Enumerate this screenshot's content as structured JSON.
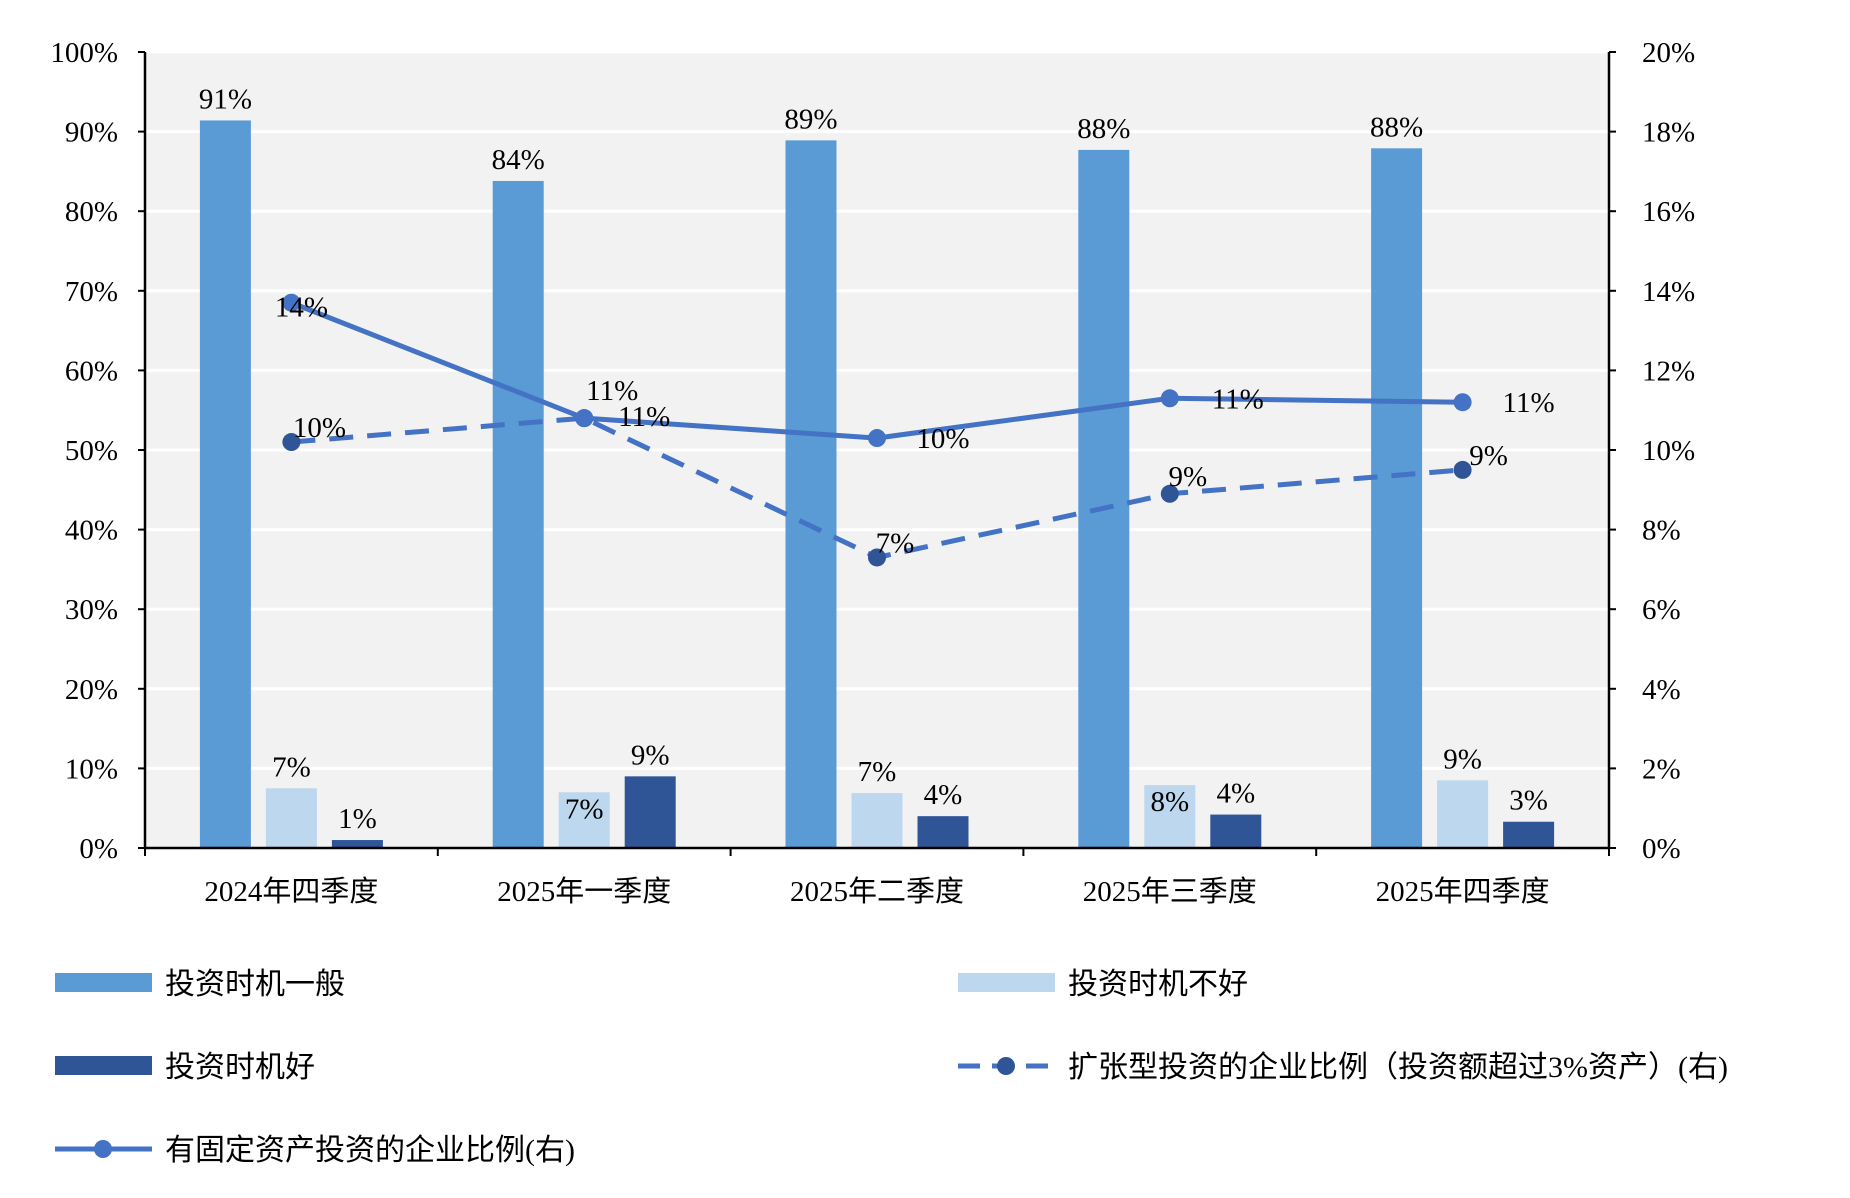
{
  "chart_data": {
    "type": "bar",
    "categories": [
      "2024年四季度",
      "2025年一季度",
      "2025年二季度",
      "2025年三季度",
      "2025年四季度"
    ],
    "left_axis": {
      "ylim": [
        0,
        100
      ],
      "ticks": [
        "0%",
        "10%",
        "20%",
        "30%",
        "40%",
        "50%",
        "60%",
        "70%",
        "80%",
        "90%",
        "100%"
      ]
    },
    "right_axis": {
      "ylim": [
        0,
        20
      ],
      "ticks": [
        "0%",
        "2%",
        "4%",
        "6%",
        "8%",
        "10%",
        "12%",
        "14%",
        "16%",
        "18%",
        "20%"
      ]
    },
    "grid": true,
    "legend_position": "bottom",
    "series": [
      {
        "name": "投资时机一般",
        "kind": "bar",
        "axis": "left",
        "color": "#5B9BD5",
        "values": [
          91.4,
          83.8,
          88.9,
          87.7,
          87.9
        ],
        "labels": [
          "91%",
          "84%",
          "89%",
          "88%",
          "88%"
        ]
      },
      {
        "name": "投资时机不好",
        "kind": "bar",
        "axis": "left",
        "color": "#BDD7EE",
        "values": [
          7.5,
          7.0,
          6.9,
          7.9,
          8.5
        ],
        "labels": [
          "7%",
          "7%",
          "7%",
          "8%",
          "9%"
        ]
      },
      {
        "name": "投资时机好",
        "kind": "bar",
        "axis": "left",
        "color": "#2F5597",
        "values": [
          1.0,
          9.0,
          4.0,
          4.2,
          3.3
        ],
        "labels": [
          "1%",
          "9%",
          "4%",
          "4%",
          "3%"
        ]
      },
      {
        "name": "扩张型投资的企业比例（投资额超过3%资产）(右)",
        "kind": "line",
        "style": "dashed",
        "axis": "right",
        "color": "#4472C4",
        "marker_color": "#2F5597",
        "values": [
          10.2,
          10.8,
          7.3,
          8.9,
          9.5
        ],
        "labels": [
          "10%",
          "11%",
          "7%",
          "9%",
          "9%"
        ]
      },
      {
        "name": "有固定资产投资的企业比例(右)",
        "kind": "line",
        "style": "solid",
        "axis": "right",
        "color": "#4472C4",
        "marker_color": "#4472C4",
        "values": [
          13.7,
          10.8,
          10.3,
          11.3,
          11.2
        ],
        "labels": [
          "14%",
          "11%",
          "10%",
          "11%",
          "11%"
        ]
      }
    ]
  }
}
